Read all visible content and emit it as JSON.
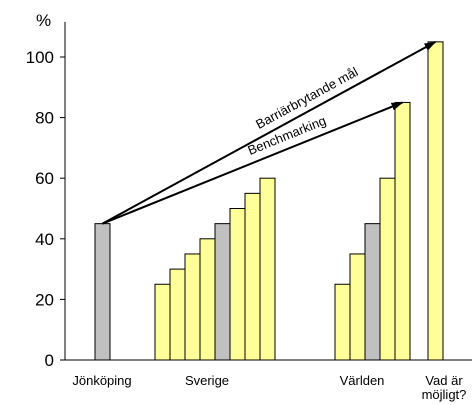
{
  "chart_data": {
    "type": "bar",
    "ylabel": "%",
    "ylim": [
      0,
      105
    ],
    "yticks": [
      0,
      20,
      40,
      60,
      80,
      100
    ],
    "grid": false,
    "legend": "none",
    "colors": {
      "gray": "#c0c0c0",
      "yellow": "#ffff99",
      "outline": "#000000"
    },
    "groups": [
      {
        "label": "Jönköping",
        "bars": [
          {
            "value": 45,
            "color": "gray"
          }
        ]
      },
      {
        "label": "Sverige",
        "bars": [
          {
            "value": 25,
            "color": "yellow"
          },
          {
            "value": 30,
            "color": "yellow"
          },
          {
            "value": 35,
            "color": "yellow"
          },
          {
            "value": 40,
            "color": "yellow"
          },
          {
            "value": 45,
            "color": "gray"
          },
          {
            "value": 50,
            "color": "yellow"
          },
          {
            "value": 55,
            "color": "yellow"
          },
          {
            "value": 60,
            "color": "yellow"
          }
        ]
      },
      {
        "label": "Världen",
        "bars": [
          {
            "value": 25,
            "color": "yellow"
          },
          {
            "value": 35,
            "color": "yellow"
          },
          {
            "value": 45,
            "color": "gray"
          },
          {
            "value": 60,
            "color": "yellow"
          },
          {
            "value": 85,
            "color": "yellow"
          }
        ]
      },
      {
        "label": "Vad är möjligt?",
        "label_lines": [
          "Vad är",
          "möjligt?"
        ],
        "bars": [
          {
            "value": 105,
            "color": "yellow"
          }
        ]
      }
    ],
    "annotations": [
      {
        "text": "Barriärbrytande mål",
        "from": {
          "group": 0,
          "bar": 0
        },
        "to": {
          "group": 3,
          "bar": 0
        }
      },
      {
        "text": "Benchmarking",
        "from": {
          "group": 0,
          "bar": 0
        },
        "to": {
          "group": 2,
          "bar": 4
        }
      }
    ]
  }
}
